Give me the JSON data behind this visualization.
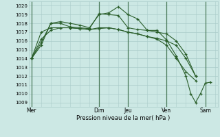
{
  "background_color": "#cce8e4",
  "grid_color": "#aaccca",
  "line_color": "#2a5e2a",
  "vline_color": "#4a7a5a",
  "ylim": [
    1008.5,
    1020.5
  ],
  "xlim": [
    -0.15,
    9.65
  ],
  "ytick_vals": [
    1009,
    1010,
    1011,
    1012,
    1013,
    1014,
    1015,
    1016,
    1017,
    1018,
    1019,
    1020
  ],
  "xlabel": "Pression niveau de la mer( hPa )",
  "day_vlines": [
    0.0,
    3.5,
    5.0,
    7.0,
    9.0
  ],
  "day_tick_pos": [
    0.0,
    3.5,
    5.0,
    7.0,
    9.0
  ],
  "day_tick_labels": [
    "Mer",
    "Dim",
    "Jeu",
    "Ven",
    "Sam"
  ],
  "series": [
    {
      "x": [
        0.0,
        0.5,
        1.0,
        1.5,
        2.0,
        2.5,
        3.0,
        3.5,
        4.0,
        4.5,
        5.0,
        5.5,
        6.0,
        6.5,
        7.0,
        7.5,
        8.0,
        8.25,
        8.5,
        8.75,
        9.0,
        9.25
      ],
      "y": [
        1014.0,
        1015.5,
        1018.0,
        1018.2,
        1018.0,
        1017.8,
        1017.5,
        1019.0,
        1019.2,
        1019.9,
        1019.0,
        1018.5,
        1017.2,
        1017.2,
        1016.1,
        1014.3,
        1012.0,
        1010.0,
        1009.0,
        1010.0,
        1011.2,
        1011.3
      ]
    },
    {
      "x": [
        0.0,
        0.5,
        1.0,
        1.5,
        2.0,
        2.5,
        3.0,
        3.5,
        4.0,
        4.5,
        5.0,
        5.5,
        6.0,
        6.5,
        7.0,
        7.5,
        8.0,
        8.5
      ],
      "y": [
        1014.0,
        1015.8,
        1018.0,
        1018.0,
        1017.6,
        1017.5,
        1017.4,
        1019.1,
        1019.0,
        1018.9,
        1017.5,
        1017.3,
        1017.2,
        1017.0,
        1016.8,
        1016.0,
        1014.5,
        1012.0
      ]
    },
    {
      "x": [
        0.0,
        0.5,
        1.0,
        1.5,
        2.0,
        2.5,
        3.0,
        3.5,
        4.0,
        4.5,
        5.0,
        5.5,
        6.0,
        6.5,
        7.0,
        7.5,
        8.0,
        8.5
      ],
      "y": [
        1014.0,
        1017.0,
        1017.5,
        1017.5,
        1017.5,
        1017.4,
        1017.3,
        1017.5,
        1017.5,
        1017.3,
        1017.0,
        1016.8,
        1016.5,
        1016.3,
        1016.0,
        1015.5,
        1014.0,
        1012.0
      ]
    },
    {
      "x": [
        0.0,
        0.5,
        1.0,
        1.5,
        2.0,
        2.5,
        3.0,
        3.5,
        4.0,
        4.5,
        5.0,
        5.5,
        6.0,
        6.5,
        7.0,
        7.5,
        8.0,
        8.5
      ],
      "y": [
        1014.0,
        1016.2,
        1017.2,
        1017.5,
        1017.5,
        1017.4,
        1017.3,
        1017.4,
        1017.5,
        1017.3,
        1017.0,
        1016.8,
        1016.5,
        1016.2,
        1015.5,
        1014.0,
        1012.5,
        1011.5
      ]
    }
  ]
}
